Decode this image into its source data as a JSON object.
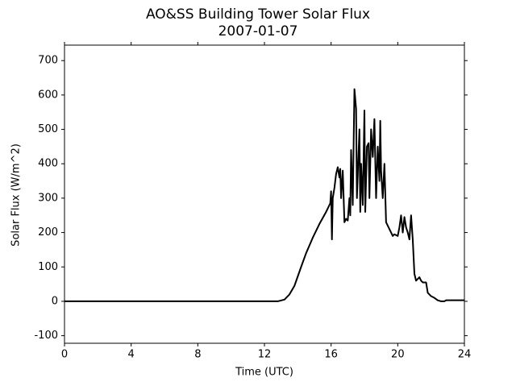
{
  "chart_data": {
    "type": "line",
    "title": "AO&SS Building Tower Solar Flux",
    "subtitle": "2007-01-07",
    "x_label": "Time (UTC)",
    "y_label": "Solar Flux (W/m^2)",
    "xlim": [
      0,
      24
    ],
    "xticks": [
      0,
      4,
      8,
      12,
      16,
      20,
      24
    ],
    "ylim": [
      -122,
      745
    ],
    "yticks": [
      -100,
      0,
      100,
      200,
      300,
      400,
      500,
      600,
      700
    ],
    "grid": false,
    "series": [
      {
        "color": "#000000",
        "x": [
          0,
          12.8,
          13.2,
          13.5,
          13.8,
          14.2,
          14.5,
          14.9,
          15.3,
          15.7,
          15.95,
          16.0,
          16.05,
          16.1,
          16.2,
          16.3,
          16.4,
          16.5,
          16.55,
          16.6,
          16.7,
          16.8,
          16.9,
          17.0,
          17.1,
          17.15,
          17.2,
          17.3,
          17.4,
          17.5,
          17.55,
          17.7,
          17.75,
          17.8,
          17.9,
          18.0,
          18.05,
          18.15,
          18.25,
          18.3,
          18.4,
          18.5,
          18.6,
          18.7,
          18.8,
          18.9,
          18.95,
          19.0,
          19.1,
          19.2,
          19.3,
          19.4,
          19.5,
          19.6,
          19.7,
          19.8,
          20.0,
          20.1,
          20.2,
          20.3,
          20.4,
          20.5,
          20.6,
          20.7,
          20.8,
          20.9,
          21.0,
          21.1,
          21.3,
          21.4,
          21.5,
          21.7,
          21.8,
          22.0,
          22.2,
          22.4,
          22.6,
          22.8,
          22.9,
          24
        ],
        "values": [
          0,
          0,
          5,
          20,
          45,
          100,
          140,
          185,
          225,
          260,
          285,
          320,
          180,
          300,
          330,
          370,
          390,
          360,
          385,
          300,
          380,
          230,
          240,
          235,
          300,
          250,
          440,
          280,
          617,
          560,
          300,
          500,
          260,
          400,
          280,
          555,
          260,
          450,
          460,
          300,
          500,
          420,
          530,
          300,
          450,
          350,
          525,
          380,
          300,
          400,
          230,
          220,
          210,
          200,
          190,
          195,
          190,
          215,
          250,
          200,
          245,
          215,
          200,
          180,
          250,
          180,
          80,
          60,
          70,
          60,
          55,
          55,
          25,
          15,
          10,
          3,
          0,
          0,
          3,
          3
        ]
      }
    ]
  }
}
